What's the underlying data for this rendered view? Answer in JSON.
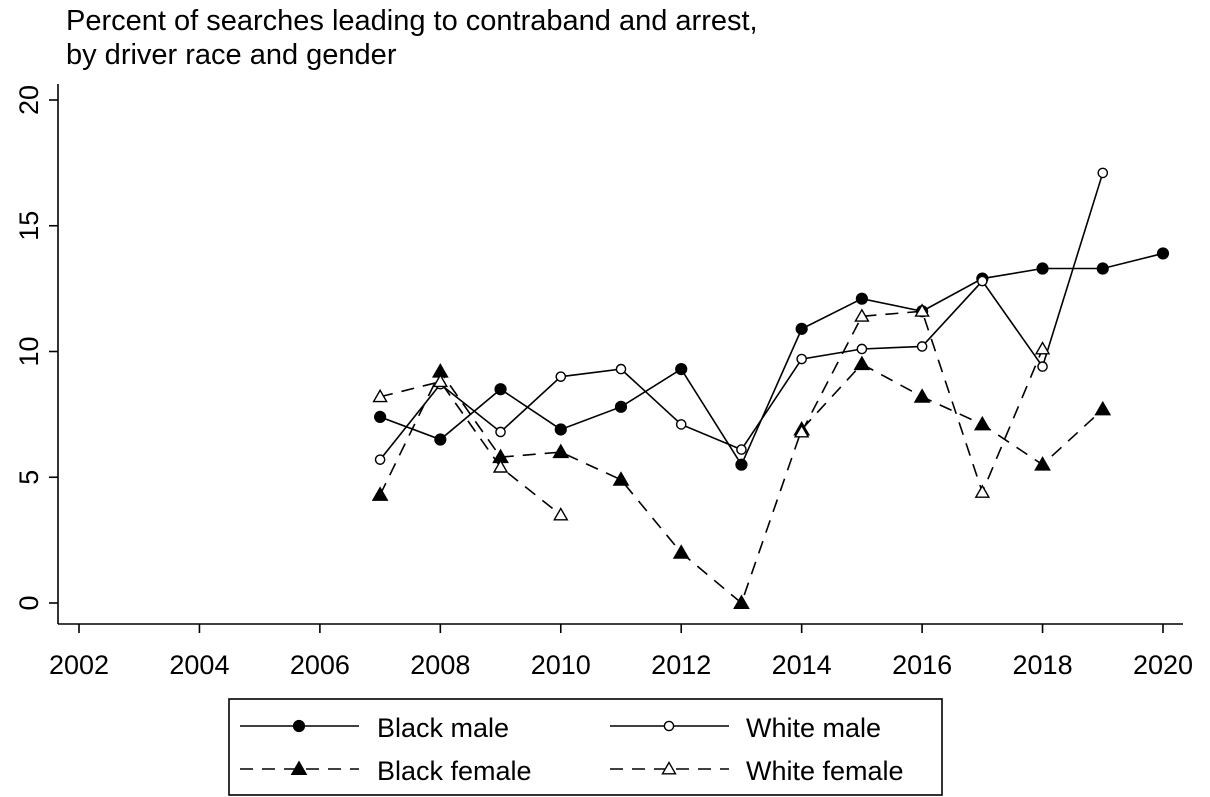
{
  "chart_data": {
    "type": "line",
    "title_lines": [
      "Percent of searches leading to contraband and arrest,",
      "by driver race and gender"
    ],
    "xlabel": "",
    "ylabel": "",
    "xlim": [
      2001.8,
      2020.3
    ],
    "ylim": [
      -0.8,
      20.9
    ],
    "x_ticks": [
      "2002",
      "2004",
      "2006",
      "2008",
      "2010",
      "2012",
      "2014",
      "2016",
      "2018",
      "2020"
    ],
    "y_ticks": [
      "0",
      "5",
      "10",
      "15",
      "20"
    ],
    "grid": false,
    "legend_position": "bottom",
    "series": [
      {
        "name": "Black male",
        "color": "#000000",
        "dash": "solid",
        "marker": "circle-filled",
        "x": [
          2007,
          2008,
          2009,
          2010,
          2011,
          2012,
          2013,
          2014,
          2015,
          2016,
          2017,
          2018,
          2019,
          2020
        ],
        "y": [
          7.4,
          6.5,
          8.5,
          6.9,
          7.8,
          9.3,
          5.5,
          10.9,
          12.1,
          11.6,
          12.9,
          13.3,
          13.3,
          13.9
        ]
      },
      {
        "name": "White male",
        "color": "#000000",
        "dash": "solid",
        "marker": "circle-open",
        "x": [
          2007,
          2008,
          2009,
          2010,
          2011,
          2012,
          2013,
          2014,
          2015,
          2016,
          2017,
          2018,
          2019
        ],
        "y": [
          5.7,
          8.7,
          6.8,
          9.0,
          9.3,
          7.1,
          6.1,
          9.7,
          10.1,
          10.2,
          12.8,
          9.4,
          17.1
        ]
      },
      {
        "name": "Black female",
        "color": "#000000",
        "dash": "dashed",
        "marker": "triangle-filled",
        "x": [
          2007,
          2008,
          2009,
          2010,
          2011,
          2012,
          2013,
          2014,
          2015,
          2016,
          2017,
          2018,
          2019
        ],
        "y": [
          4.3,
          9.2,
          5.8,
          6.0,
          4.9,
          2.0,
          0.0,
          6.9,
          9.5,
          8.2,
          7.1,
          5.5,
          7.7
        ]
      },
      {
        "name": "White female",
        "color": "#000000",
        "dash": "dashed",
        "marker": "triangle-open",
        "x": [
          2007,
          2008,
          2009,
          2010,
          null,
          null,
          null,
          2014,
          2015,
          2016,
          2017,
          2018
        ],
        "y": [
          8.2,
          8.8,
          5.4,
          3.5,
          null,
          null,
          null,
          6.8,
          11.4,
          11.6,
          4.4,
          10.1
        ]
      }
    ]
  }
}
